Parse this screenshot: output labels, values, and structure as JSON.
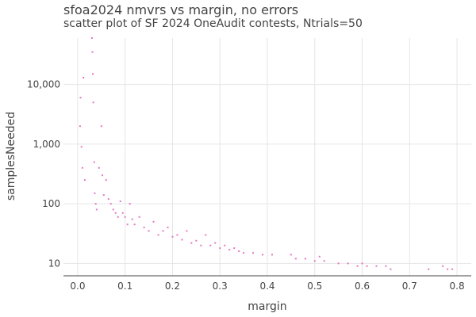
{
  "chart_data": {
    "type": "scatter",
    "title": "sfoa2024 nmvrs vs margin, no errors",
    "subtitle": "scatter plot of SF 2024 OneAudit contests, Ntrials=50",
    "xlabel": "margin",
    "ylabel": "samplesNeeded",
    "x_ticks": [
      "0.0",
      "0.1",
      "0.2",
      "0.3",
      "0.4",
      "0.5",
      "0.6",
      "0.7",
      "0.8"
    ],
    "x_tick_values": [
      0,
      0.1,
      0.2,
      0.3,
      0.4,
      0.5,
      0.6,
      0.7,
      0.8
    ],
    "y_ticks": [
      "10",
      "100",
      "1,000",
      "10,000"
    ],
    "y_tick_values": [
      10,
      100,
      1000,
      10000
    ],
    "xlim": [
      -0.03,
      0.83
    ],
    "ylim": [
      6.2,
      60000
    ],
    "y_scale": "log",
    "grid": true,
    "point_color": "#e377c2",
    "series": [
      {
        "points": [
          [
            0.005,
            2000
          ],
          [
            0.006,
            6000
          ],
          [
            0.008,
            900
          ],
          [
            0.01,
            400
          ],
          [
            0.012,
            13000
          ],
          [
            0.015,
            250
          ],
          [
            0.03,
            60000
          ],
          [
            0.031,
            35000
          ],
          [
            0.032,
            15000
          ],
          [
            0.033,
            5000
          ],
          [
            0.035,
            500
          ],
          [
            0.036,
            150
          ],
          [
            0.038,
            100
          ],
          [
            0.04,
            80
          ],
          [
            0.045,
            400
          ],
          [
            0.05,
            2000
          ],
          [
            0.052,
            300
          ],
          [
            0.055,
            140
          ],
          [
            0.06,
            250
          ],
          [
            0.065,
            120
          ],
          [
            0.07,
            100
          ],
          [
            0.075,
            80
          ],
          [
            0.08,
            70
          ],
          [
            0.085,
            60
          ],
          [
            0.09,
            110
          ],
          [
            0.095,
            70
          ],
          [
            0.1,
            60
          ],
          [
            0.105,
            45
          ],
          [
            0.11,
            100
          ],
          [
            0.115,
            55
          ],
          [
            0.12,
            45
          ],
          [
            0.13,
            60
          ],
          [
            0.14,
            40
          ],
          [
            0.15,
            35
          ],
          [
            0.16,
            50
          ],
          [
            0.17,
            30
          ],
          [
            0.18,
            35
          ],
          [
            0.19,
            40
          ],
          [
            0.2,
            28
          ],
          [
            0.21,
            30
          ],
          [
            0.22,
            25
          ],
          [
            0.23,
            35
          ],
          [
            0.24,
            22
          ],
          [
            0.25,
            24
          ],
          [
            0.26,
            20
          ],
          [
            0.27,
            30
          ],
          [
            0.28,
            20
          ],
          [
            0.29,
            22
          ],
          [
            0.3,
            18
          ],
          [
            0.31,
            20
          ],
          [
            0.32,
            17
          ],
          [
            0.33,
            18
          ],
          [
            0.34,
            16
          ],
          [
            0.35,
            15
          ],
          [
            0.37,
            15
          ],
          [
            0.39,
            14
          ],
          [
            0.41,
            14
          ],
          [
            0.45,
            14
          ],
          [
            0.46,
            12
          ],
          [
            0.48,
            12
          ],
          [
            0.5,
            11
          ],
          [
            0.51,
            13
          ],
          [
            0.52,
            11
          ],
          [
            0.55,
            10
          ],
          [
            0.57,
            10
          ],
          [
            0.59,
            9
          ],
          [
            0.6,
            10
          ],
          [
            0.61,
            9
          ],
          [
            0.63,
            9
          ],
          [
            0.65,
            9
          ],
          [
            0.66,
            8
          ],
          [
            0.74,
            8
          ],
          [
            0.77,
            9
          ],
          [
            0.78,
            8
          ],
          [
            0.79,
            8
          ]
        ]
      }
    ]
  }
}
